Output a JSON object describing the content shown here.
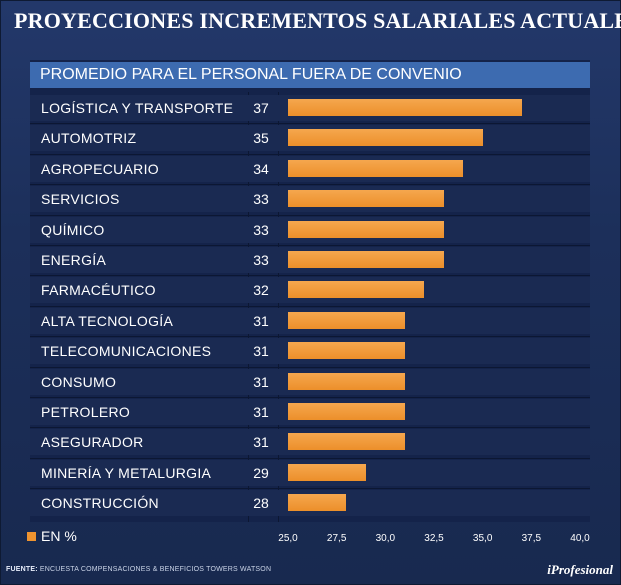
{
  "title": "PROYECCIONES INCREMENTOS SALARIALES ACTUALES",
  "subtitle": "PROMEDIO PARA EL PERSONAL FUERA DE CONVENIO",
  "legend_label": "EN %",
  "source_label": "FUENTE:",
  "source_text": "ENCUESTA COMPENSACIONES & BENEFICIOS TOWERS WATSON",
  "brand": "iProfesional",
  "colors": {
    "bar": "#ef9430",
    "background": "#1c2f5a",
    "header": "#3d6bb0"
  },
  "chart_data": {
    "type": "bar",
    "orientation": "horizontal",
    "title": "PROMEDIO PARA EL PERSONAL FUERA DE CONVENIO",
    "unit": "EN %",
    "categories": [
      "LOGÍSTICA Y TRANSPORTE",
      "AUTOMOTRIZ",
      "AGROPECUARIO",
      "SERVICIOS",
      "QUÍMICO",
      "ENERGÍA",
      "FARMACÉUTICO",
      "ALTA TECNOLOGÍA",
      "TELECOMUNICACIONES",
      "CONSUMO",
      "PETROLERO",
      "ASEGURADOR",
      "MINERÍA Y METALURGIA",
      "CONSTRUCCIÓN"
    ],
    "values": [
      37,
      35,
      34,
      33,
      33,
      33,
      32,
      31,
      31,
      31,
      31,
      31,
      29,
      28
    ],
    "xlim": [
      25,
      40
    ],
    "xticks": [
      "25,0",
      "27,5",
      "30,0",
      "32,5",
      "35,0",
      "37,5",
      "40,0"
    ]
  }
}
